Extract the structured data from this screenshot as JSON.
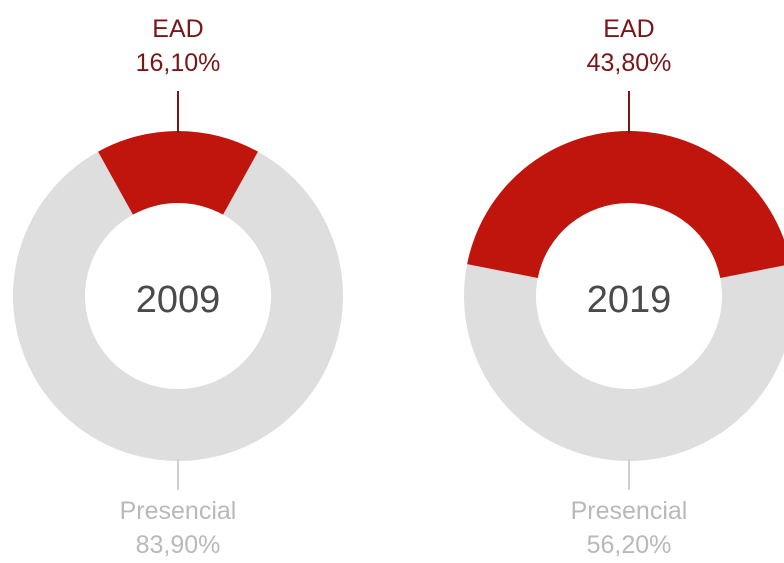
{
  "chart_data": [
    {
      "type": "pie",
      "center_label": "2009",
      "categories": [
        "EAD",
        "Presencial"
      ],
      "values": [
        16.1,
        83.9
      ],
      "value_labels": [
        "16,10%",
        "83,90%"
      ],
      "colors": [
        "#c0150c",
        "#dedede"
      ]
    },
    {
      "type": "pie",
      "center_label": "2019",
      "categories": [
        "EAD",
        "Presencial"
      ],
      "values": [
        43.8,
        56.2
      ],
      "value_labels": [
        "43,80%",
        "56,20%"
      ],
      "colors": [
        "#c0150c",
        "#dedede"
      ]
    }
  ]
}
